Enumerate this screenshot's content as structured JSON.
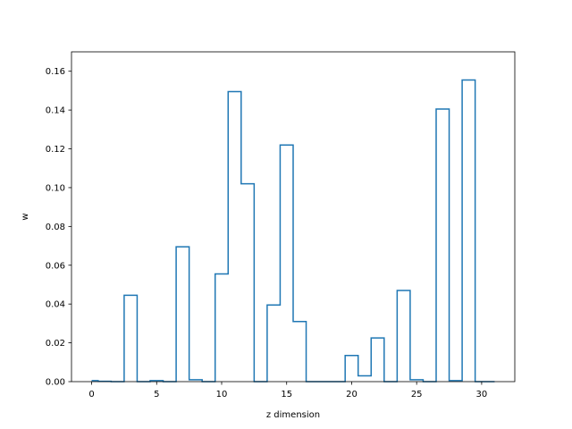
{
  "chart_data": {
    "type": "line",
    "style": "steps-mid",
    "title": "",
    "xlabel": "z dimension",
    "ylabel": "w",
    "xlim": [
      -1.55,
      32.55
    ],
    "ylim": [
      0,
      0.17
    ],
    "xticks": [
      0,
      5,
      10,
      15,
      20,
      25,
      30
    ],
    "yticks": [
      0.0,
      0.02,
      0.04,
      0.06,
      0.08,
      0.1,
      0.12,
      0.14,
      0.16
    ],
    "ytick_labels": [
      "0.00",
      "0.02",
      "0.04",
      "0.06",
      "0.08",
      "0.10",
      "0.12",
      "0.14",
      "0.16"
    ],
    "grid": false,
    "line_color": "#1f77b4",
    "series": [
      {
        "x": [
          0,
          1,
          2,
          3,
          4,
          5,
          6,
          7,
          8,
          9,
          10,
          11,
          12,
          13,
          14,
          15,
          16,
          17,
          18,
          19,
          20,
          21,
          22,
          23,
          24,
          25,
          26,
          27,
          28,
          29,
          30,
          31
        ],
        "y": [
          0.0005,
          0.0002,
          0.0,
          0.0445,
          0.0,
          0.0005,
          0.0,
          0.0695,
          0.001,
          0.0,
          0.0555,
          0.1495,
          0.102,
          0.0,
          0.0395,
          0.122,
          0.031,
          0.0,
          0.0,
          0.0,
          0.0135,
          0.003,
          0.0225,
          0.0,
          0.047,
          0.001,
          0.0,
          0.1405,
          0.0005,
          0.1555,
          0.0,
          0.0
        ]
      }
    ]
  }
}
